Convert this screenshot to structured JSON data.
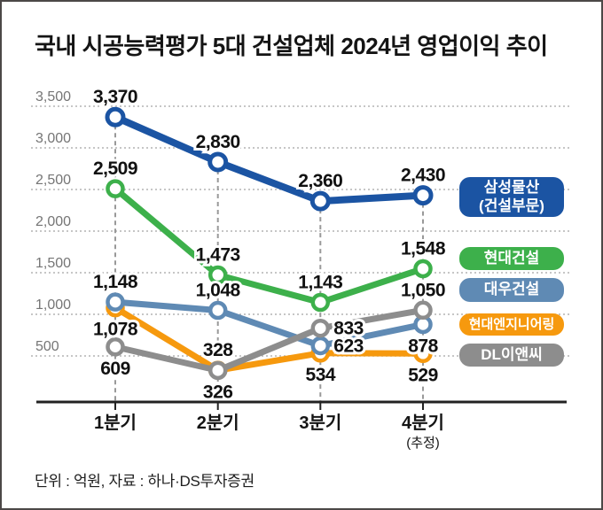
{
  "title": "국내 시공능력평가 5대 건설업체 2024년 영업이익 추이",
  "footer": "단위 : 억원, 자료 : 하나·DS투자증권",
  "chart_data": {
    "type": "line",
    "categories": [
      "1분기",
      "2분기",
      "3분기",
      "4분기"
    ],
    "x_sub_label": {
      "index": 3,
      "text": "(추정)"
    },
    "ylim": [
      0,
      3500
    ],
    "y_ticks": [
      3500,
      3000,
      2500,
      2000,
      1500,
      1000,
      500
    ],
    "y_tick_labels": [
      "3,500",
      "3,000",
      "2,500",
      "2,000",
      "1,500",
      "1,000",
      "500"
    ],
    "grid": "dotted-horizontal",
    "legend_position": "right",
    "marker_style": "open-circle",
    "series": [
      {
        "name": "삼성물산 (건설부문)",
        "legend_lines": [
          "삼성물산",
          "(건설부문)"
        ],
        "color": "#1b54a3",
        "values": [
          3370,
          2830,
          2360,
          2430
        ],
        "labels": [
          "3,370",
          "2,830",
          "2,360",
          "2,430"
        ],
        "label_pos": [
          "above",
          "above",
          "above",
          "above"
        ]
      },
      {
        "name": "현대건설",
        "legend_lines": [
          "현대건설"
        ],
        "color": "#3db04b",
        "values": [
          2509,
          1473,
          1143,
          1548
        ],
        "labels": [
          "2,509",
          "1,473",
          "1,143",
          "1,548"
        ],
        "label_pos": [
          "above",
          "above",
          "above",
          "above"
        ]
      },
      {
        "name": "대우건설",
        "legend_lines": [
          "대우건설"
        ],
        "color": "#5f8ab4",
        "values": [
          1148,
          1048,
          623,
          878
        ],
        "labels": [
          "1,148",
          "1,048",
          "623",
          "878"
        ],
        "label_pos": [
          "above",
          "above",
          "right",
          "below"
        ]
      },
      {
        "name": "현대엔지니어링",
        "legend_lines": [
          "현대엔지니어링"
        ],
        "color": "#f6990e",
        "values": [
          1078,
          328,
          534,
          529
        ],
        "labels": [
          "1,078",
          "328",
          "534",
          "529"
        ],
        "label_pos": [
          "below",
          "above",
          "below",
          "below"
        ]
      },
      {
        "name": "DL이앤씨",
        "legend_lines": [
          "DL이앤씨"
        ],
        "color": "#8d8d8d",
        "values": [
          609,
          326,
          833,
          1050
        ],
        "labels": [
          "609",
          "326",
          "833",
          "1,050"
        ],
        "label_pos": [
          "below",
          "below",
          "right",
          "above"
        ]
      }
    ]
  }
}
